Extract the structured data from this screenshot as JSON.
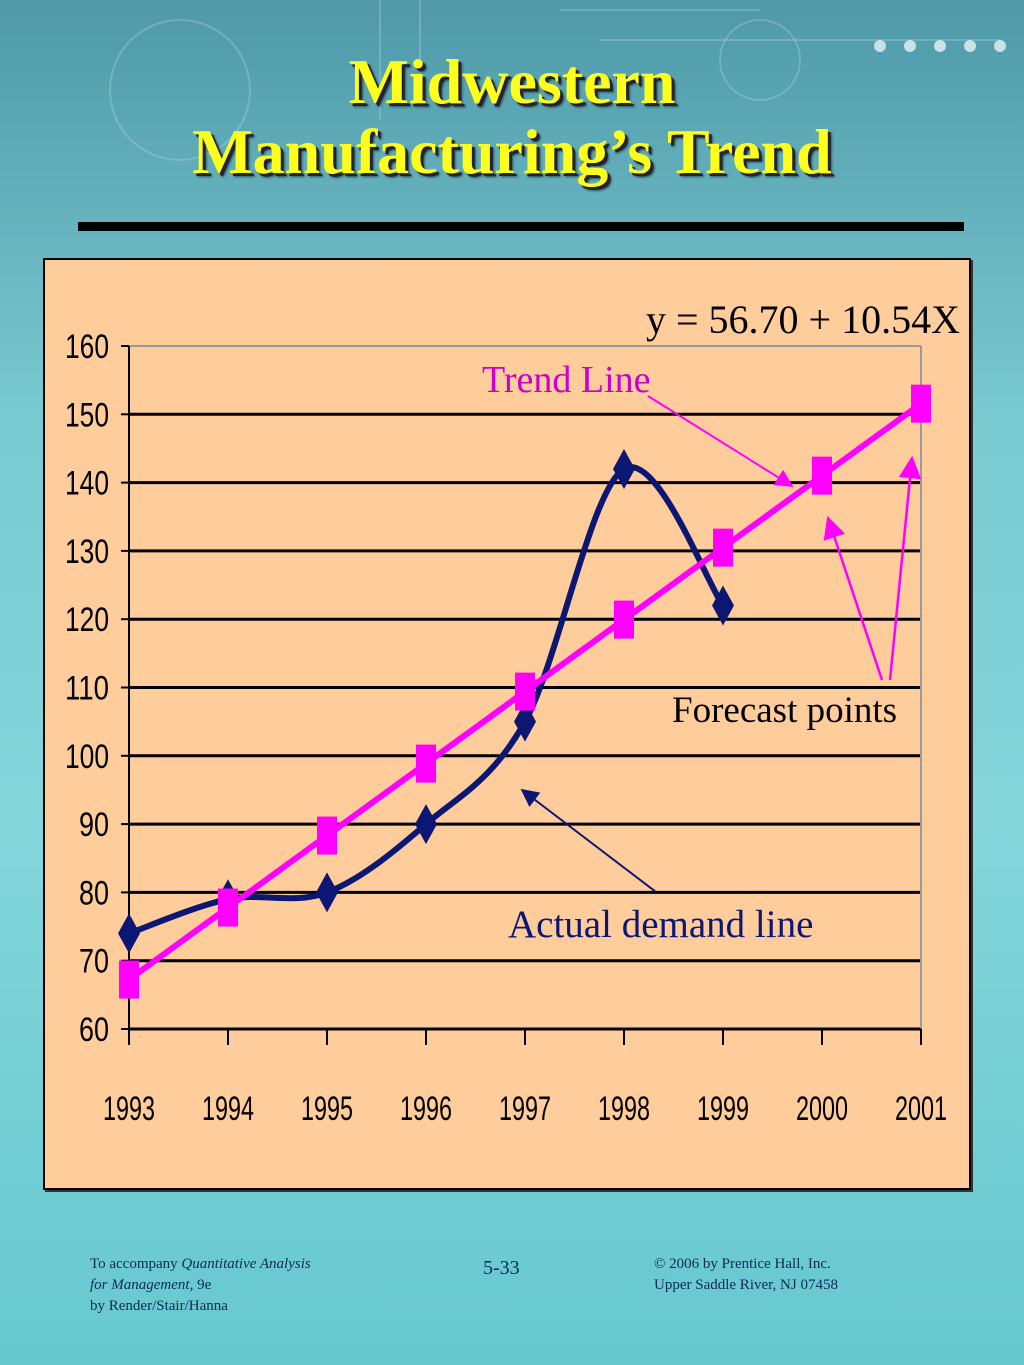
{
  "slide": {
    "title_line1": "Midwestern",
    "title_line2": "Manufacturing’s Trend"
  },
  "chart_data": {
    "type": "line",
    "categories": [
      "1993",
      "1994",
      "1995",
      "1996",
      "1997",
      "1998",
      "1999",
      "2000",
      "2001"
    ],
    "series": [
      {
        "values": [
          74,
          79,
          80,
          90,
          105,
          142,
          122,
          null,
          null
        ]
      },
      {
        "values": [
          67.24,
          77.78,
          88.32,
          98.86,
          109.4,
          119.94,
          130.48,
          141.02,
          151.56
        ]
      }
    ],
    "ylim": [
      60,
      160
    ],
    "yticks": [
      "60",
      "70",
      "80",
      "90",
      "100",
      "110",
      "120",
      "130",
      "140",
      "150",
      "160"
    ],
    "grid": true,
    "annotations": {
      "equation": "y = 56.70 + 10.54X",
      "trend_label": "Trend Line",
      "forecast_label": "Forecast points",
      "actual_label": "Actual demand line"
    },
    "colors": {
      "actual": "#0c1773",
      "trend": "#ff00ff"
    }
  },
  "footer": {
    "left_line1_prefix": "To accompany ",
    "left_line1_italic": "Quantitative Analysis",
    "left_line2_italic": "for Management,",
    "left_line2_suffix": " 9e",
    "left_line3": "by Render/Stair/Hanna",
    "page_number": "5-33",
    "right_line1": "© 2006 by Prentice Hall, Inc.",
    "right_line2": "Upper Saddle River,  NJ 07458"
  }
}
